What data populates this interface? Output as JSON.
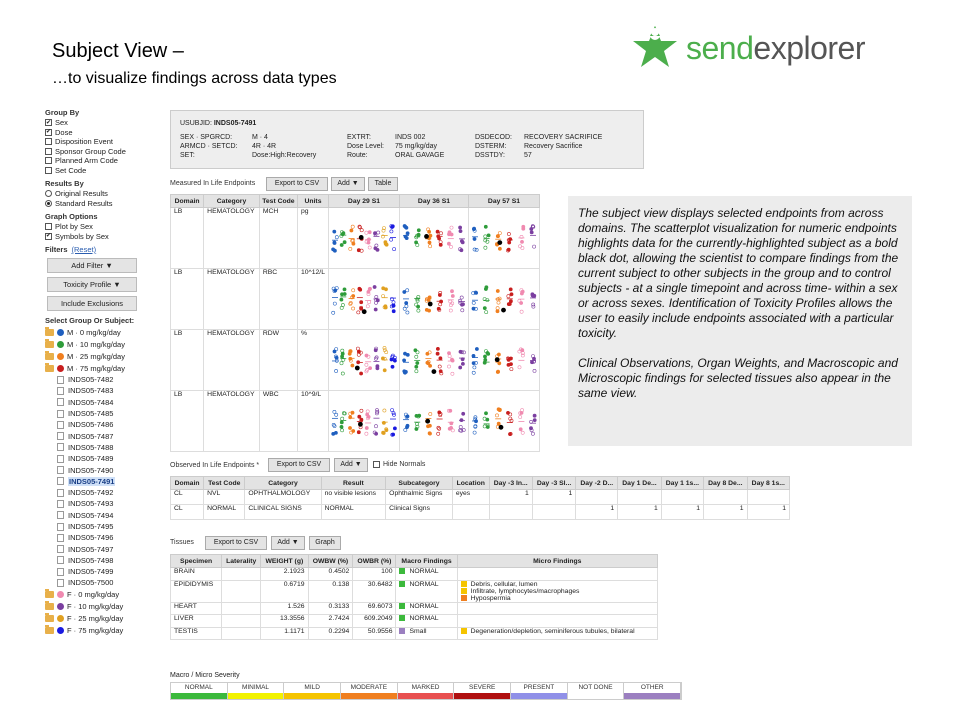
{
  "slide": {
    "title": "Subject View –",
    "subtitle": "…to visualize findings across data types"
  },
  "logo": {
    "part1": "send",
    "part2": "explorer",
    "icon": "star-person-icon",
    "color": "#4cae4c"
  },
  "sidebar": {
    "group_by_heading": "Group By",
    "group_by": [
      {
        "label": "Sex",
        "checked": true
      },
      {
        "label": "Dose",
        "checked": true
      },
      {
        "label": "Disposition Event",
        "checked": false
      },
      {
        "label": "Sponsor Group Code",
        "checked": false
      },
      {
        "label": "Planned Arm Code",
        "checked": false
      },
      {
        "label": "Set Code",
        "checked": false
      }
    ],
    "results_by_heading": "Results By",
    "results_by": [
      {
        "label": "Original Results",
        "selected": false
      },
      {
        "label": "Standard Results",
        "selected": true
      }
    ],
    "graph_options_heading": "Graph Options",
    "graph_options": [
      {
        "label": "Plot by Sex",
        "checked": false
      },
      {
        "label": "Symbols by Sex",
        "checked": true
      }
    ],
    "filters_heading": "Filters",
    "filters_reset": "(Reset)",
    "add_filter": "Add Filter ▼",
    "toxicity_profile": "Toxicity Profile ▼",
    "include_exclusions": "Include Exclusions",
    "select_heading": "Select Group Or Subject:",
    "groups_male": [
      {
        "label": "M · 0 mg/kg/day",
        "color": "#1f5fbf"
      },
      {
        "label": "M · 10 mg/kg/day",
        "color": "#2e9c3a"
      },
      {
        "label": "M · 25 mg/kg/day",
        "color": "#f07f1f"
      },
      {
        "label": "M · 75 mg/kg/day",
        "color": "#c81e1e"
      }
    ],
    "subjects": [
      "INDS05-7482",
      "INDS05-7483",
      "INDS05-7484",
      "INDS05-7485",
      "INDS05-7486",
      "INDS05-7487",
      "INDS05-7488",
      "INDS05-7489",
      "INDS05-7490",
      "INDS05-7491",
      "INDS05-7492",
      "INDS05-7493",
      "INDS05-7494",
      "INDS05-7495",
      "INDS05-7496",
      "INDS05-7497",
      "INDS05-7498",
      "INDS05-7499",
      "INDS05-7500"
    ],
    "selected_subject": "INDS05-7491",
    "groups_female": [
      {
        "label": "F · 0 mg/kg/day",
        "color": "#f08ab0"
      },
      {
        "label": "F · 10 mg/kg/day",
        "color": "#7b3fa0"
      },
      {
        "label": "F · 25 mg/kg/day",
        "color": "#e0a020"
      },
      {
        "label": "F · 75 mg/kg/day",
        "color": "#1a1ae0"
      }
    ]
  },
  "subject": {
    "usubjid_label": "USUBJID:",
    "usubjid": "INDS05-7491",
    "col1_labels": [
      "SEX · SPGRCD:",
      "ARMCD · SETCD:",
      "SET:"
    ],
    "col1_values": [
      "M · 4",
      "4R · 4R",
      "Dose:High:Recovery"
    ],
    "col2_labels": [
      "EXTRT:",
      "Dose Level:",
      "Route:"
    ],
    "col2_values": [
      "INDS 002",
      "75 mg/kg/day",
      "ORAL GAVAGE"
    ],
    "col3_labels": [
      "DSDECOD:",
      "DSTERM:",
      "DSSTDY:"
    ],
    "col3_values": [
      "RECOVERY SACRIFICE",
      "Recovery Sacrifice",
      "57"
    ]
  },
  "mle": {
    "label": "Measured In Life Endpoints",
    "export": "Export to CSV",
    "add": "Add ▼",
    "table": "Table",
    "headers": [
      "Domain",
      "Category",
      "Test Code",
      "Units",
      "Day 29 S1",
      "Day 36 S1",
      "Day 57 S1"
    ],
    "rows": [
      {
        "domain": "LB",
        "category": "HEMATOLOGY",
        "test": "MCH",
        "units": "pg"
      },
      {
        "domain": "LB",
        "category": "HEMATOLOGY",
        "test": "RBC",
        "units": "10^12/L"
      },
      {
        "domain": "LB",
        "category": "HEMATOLOGY",
        "test": "RDW",
        "units": "%"
      },
      {
        "domain": "LB",
        "category": "HEMATOLOGY",
        "test": "WBC",
        "units": "10^9/L"
      }
    ]
  },
  "oile": {
    "label": "Observed In Life Endpoints *",
    "export": "Export to CSV",
    "add": "Add ▼",
    "hide_normals": "Hide Normals",
    "headers": [
      "Domain",
      "Test Code",
      "Category",
      "Result",
      "Subcategory",
      "Location",
      "Day -3 In...",
      "Day -3 Sl...",
      "Day -2 D...",
      "Day 1 De...",
      "Day 1 1s...",
      "Day 8 De...",
      "Day 8 1s..."
    ],
    "rows": [
      {
        "cells": [
          "CL",
          "NVL",
          "OPHTHALMOLOGY",
          "no visible lesions",
          "Ophthalmic Signs",
          "eyes",
          "1",
          "1",
          "",
          "",
          "",
          "",
          ""
        ]
      },
      {
        "cells": [
          "CL",
          "NORMAL",
          "CLINICAL SIGNS",
          "NORMAL",
          "Clinical Signs",
          "",
          "",
          "",
          "1",
          "1",
          "1",
          "1",
          "1"
        ]
      }
    ]
  },
  "tissues": {
    "label": "Tissues",
    "export": "Export to CSV",
    "add": "Add ▼",
    "graph": "Graph",
    "headers": [
      "Specimen",
      "Laterality",
      "WEIGHT (g)",
      "OWBW (%)",
      "OWBR (%)",
      "Macro Findings",
      "Micro Findings"
    ],
    "rows": [
      {
        "specimen": "BRAIN",
        "lat": "",
        "weight": "2.1923",
        "owbw": "0.4502",
        "owbr": "100",
        "macro": "NORMAL",
        "macro_color": "#3cb93c",
        "micro": []
      },
      {
        "specimen": "EPIDIDYMIS",
        "lat": "",
        "weight": "0.6719",
        "owbw": "0.138",
        "owbr": "30.6482",
        "macro": "NORMAL",
        "macro_color": "#3cb93c",
        "micro": [
          {
            "text": "Debris, cellular, lumen",
            "color": "#f5c400"
          },
          {
            "text": "Infiltrate, lymphocytes/macrophages",
            "color": "#f5c400"
          },
          {
            "text": "Hypospermia",
            "color": "#f07f1f"
          }
        ]
      },
      {
        "specimen": "HEART",
        "lat": "",
        "weight": "1.526",
        "owbw": "0.3133",
        "owbr": "69.6073",
        "macro": "NORMAL",
        "macro_color": "#3cb93c",
        "micro": []
      },
      {
        "specimen": "LIVER",
        "lat": "",
        "weight": "13.3556",
        "owbw": "2.7424",
        "owbr": "609.2049",
        "macro": "NORMAL",
        "macro_color": "#3cb93c",
        "micro": []
      },
      {
        "specimen": "TESTIS",
        "lat": "",
        "weight": "1.1171",
        "owbw": "0.2294",
        "owbr": "50.9556",
        "macro": "Small",
        "macro_color": "#9b7fc0",
        "micro": [
          {
            "text": "Degeneration/depletion, seminiferous tubules, bilateral",
            "color": "#f5c400"
          }
        ]
      }
    ]
  },
  "description": {
    "p1": "The subject view displays selected endpoints from across domains.  The scatterplot visualization for numeric endpoints highlights data for the currently-highlighted subject as a bold black dot, allowing the scientist to compare findings from the current subject to other subjects in the group and to control subjects - at a single timepoint and across time- within a sex or across sexes. Identification of Toxicity Profiles allows the user to easily include endpoints associated with a particular toxicity.",
    "p2": "Clinical Observations, Organ Weights, and Macroscopic and Microscopic findings for selected tissues also appear in the same view."
  },
  "severity_legend": {
    "label": "Macro / Micro Severity",
    "items": [
      {
        "label": "NORMAL",
        "color": "#3cb93c"
      },
      {
        "label": "MINIMAL",
        "color": "#f2f200"
      },
      {
        "label": "MILD",
        "color": "#f5c400"
      },
      {
        "label": "MODERATE",
        "color": "#f07f1f"
      },
      {
        "label": "MARKED",
        "color": "#e85050"
      },
      {
        "label": "SEVERE",
        "color": "#b01010"
      },
      {
        "label": "PRESENT",
        "color": "#9090e8"
      },
      {
        "label": "NOT DONE",
        "color": "#ffffff"
      },
      {
        "label": "OTHER",
        "color": "#9b7fc0"
      }
    ]
  }
}
